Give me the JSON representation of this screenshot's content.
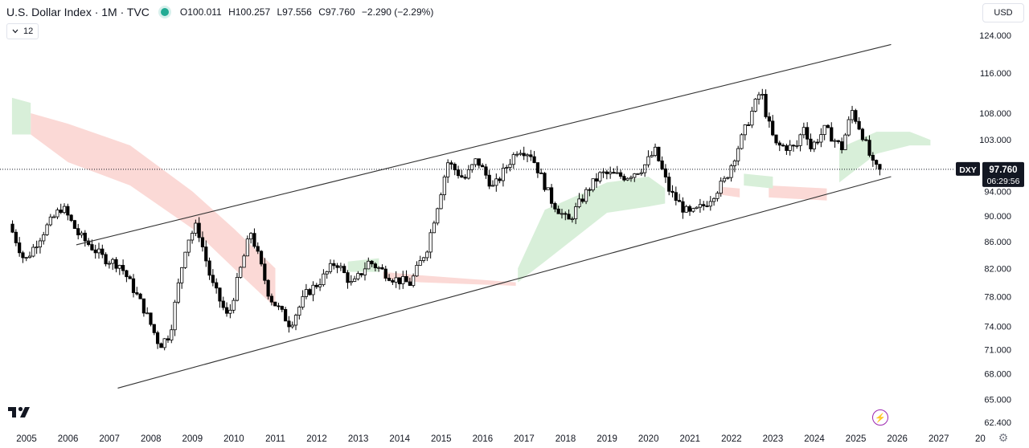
{
  "header": {
    "symbol_title": "U.S. Dollar Index · 1M · TVC",
    "open": "O100.011",
    "high": "H100.257",
    "low": "L97.556",
    "close": "C97.760",
    "change": "−2.290 (−2.29%)"
  },
  "indicator_toggle": {
    "icon": "chevron-down-icon",
    "count": "12"
  },
  "currency_button": "USD",
  "price_badge": {
    "symbol": "DXY",
    "price": "97.760",
    "countdown": "06:29:56"
  },
  "colors": {
    "up_candle": "#ffffff",
    "down_candle": "#000000",
    "candle_border": "#000000",
    "cloud_bull": "#d8efd9",
    "cloud_bear": "#fbd9d6",
    "channel_line": "#333333",
    "accent_live": "#22ab94",
    "badge_bg": "#131722"
  },
  "chart_data": {
    "type": "candlestick",
    "title": "U.S. Dollar Index · 1M · TVC",
    "y_axis_ticks": [
      "124.000",
      "116.000",
      "108.000",
      "103.000",
      "94.000",
      "90.000",
      "86.000",
      "82.000",
      "78.000",
      "74.000",
      "71.000",
      "68.000",
      "65.000",
      "62.400"
    ],
    "y_axis_tick_values": [
      124,
      116,
      108,
      103,
      94,
      90,
      86,
      82,
      78,
      74,
      71,
      68,
      65,
      62.4
    ],
    "x_axis_ticks": [
      "2005",
      "2006",
      "2007",
      "2008",
      "2009",
      "2010",
      "2011",
      "2012",
      "2013",
      "2014",
      "2015",
      "2016",
      "2017",
      "2018",
      "2019",
      "2020",
      "2021",
      "2022",
      "2023",
      "2024",
      "2025",
      "2026",
      "2027",
      "20"
    ],
    "ylim": [
      61.5,
      130
    ],
    "xlim": [
      2004.65,
      2028.6
    ],
    "scale": "log",
    "last_close": 97.76,
    "price_anchors": [
      [
        2004.6,
        89
      ],
      [
        2005.0,
        83
      ],
      [
        2005.5,
        88
      ],
      [
        2005.9,
        91.5
      ],
      [
        2006.3,
        87
      ],
      [
        2006.9,
        83.5
      ],
      [
        2007.3,
        82.5
      ],
      [
        2007.9,
        76
      ],
      [
        2008.25,
        71.5
      ],
      [
        2008.5,
        73
      ],
      [
        2008.9,
        86
      ],
      [
        2009.15,
        88.5
      ],
      [
        2009.5,
        80
      ],
      [
        2009.9,
        75
      ],
      [
        2010.45,
        87.5
      ],
      [
        2010.9,
        78
      ],
      [
        2011.4,
        74.2
      ],
      [
        2011.8,
        78.5
      ],
      [
        2012.1,
        80
      ],
      [
        2012.5,
        83
      ],
      [
        2012.9,
        79.5
      ],
      [
        2013.3,
        83
      ],
      [
        2013.9,
        80.5
      ],
      [
        2014.3,
        79.8
      ],
      [
        2014.7,
        85
      ],
      [
        2015.0,
        93
      ],
      [
        2015.2,
        99
      ],
      [
        2015.6,
        96
      ],
      [
        2015.9,
        99.5
      ],
      [
        2016.3,
        94.5
      ],
      [
        2016.9,
        101.5
      ],
      [
        2017.2,
        100.5
      ],
      [
        2017.7,
        92.5
      ],
      [
        2018.1,
        89
      ],
      [
        2018.6,
        94.5
      ],
      [
        2018.9,
        97
      ],
      [
        2019.5,
        96.5
      ],
      [
        2019.9,
        98
      ],
      [
        2020.2,
        101
      ],
      [
        2020.55,
        94
      ],
      [
        2020.9,
        91
      ],
      [
        2021.05,
        90.2
      ],
      [
        2021.4,
        91.8
      ],
      [
        2021.9,
        96
      ],
      [
        2022.3,
        103.5
      ],
      [
        2022.75,
        112.5
      ],
      [
        2022.9,
        107
      ],
      [
        2023.1,
        102
      ],
      [
        2023.6,
        101.5
      ],
      [
        2023.8,
        106
      ],
      [
        2023.95,
        101.5
      ],
      [
        2024.3,
        105
      ],
      [
        2024.7,
        101.5
      ],
      [
        2024.95,
        108.5
      ],
      [
        2025.2,
        104
      ],
      [
        2025.45,
        98.5
      ],
      [
        2025.55,
        97.8
      ]
    ],
    "ichimoku_cloud": {
      "bull_segments": [
        {
          "x": [
            2004.65,
            2005.1
          ],
          "top": [
            111,
            110
          ],
          "bot": [
            104,
            104
          ]
        },
        {
          "x": [
            2012.75,
            2013.5
          ],
          "top": [
            83,
            83.5
          ],
          "bot": [
            81.5,
            81.5
          ]
        },
        {
          "x": [
            2016.85,
            2017.5,
            2019.0,
            2020.0,
            2020.4
          ],
          "top": [
            82,
            91,
            95.5,
            96.5,
            94.5
          ],
          "bot": [
            80,
            83,
            90.5,
            91.5,
            92
          ]
        },
        {
          "x": [
            2022.3,
            2023.0
          ],
          "top": [
            97,
            96.5
          ],
          "bot": [
            95,
            94.5
          ]
        },
        {
          "x": [
            2024.6,
            2025.5,
            2026.3,
            2026.8
          ],
          "top": [
            101.5,
            104.5,
            104.5,
            103
          ],
          "bot": [
            95.5,
            100.5,
            102,
            102
          ]
        }
      ],
      "bear_segments": [
        {
          "x": [
            2005.1,
            2006.0,
            2007.5,
            2009.0,
            2010.0,
            2011.0
          ],
          "top": [
            108,
            106,
            102,
            94,
            88,
            82
          ],
          "bot": [
            104,
            99,
            95,
            88,
            82,
            76.5
          ]
        },
        {
          "x": [
            2013.6,
            2014.5,
            2016.8
          ],
          "top": [
            81.5,
            81,
            80
          ],
          "bot": [
            80.5,
            80,
            79.5
          ]
        },
        {
          "x": [
            2021.7,
            2022.2
          ],
          "top": [
            94.8,
            94.5
          ],
          "bot": [
            93.5,
            93
          ]
        },
        {
          "x": [
            2022.9,
            2024.3
          ],
          "top": [
            95,
            94.5
          ],
          "bot": [
            93,
            92.5
          ]
        }
      ]
    },
    "channel": {
      "upper": {
        "x": [
          2006.2,
          2025.85
        ],
        "y": [
          85.5,
          122
        ]
      },
      "lower": {
        "x": [
          2007.2,
          2025.85
        ],
        "y": [
          66.3,
          96.5
        ]
      }
    },
    "last_price_line": 97.76,
    "grid": false,
    "xlabel": "",
    "ylabel": ""
  }
}
